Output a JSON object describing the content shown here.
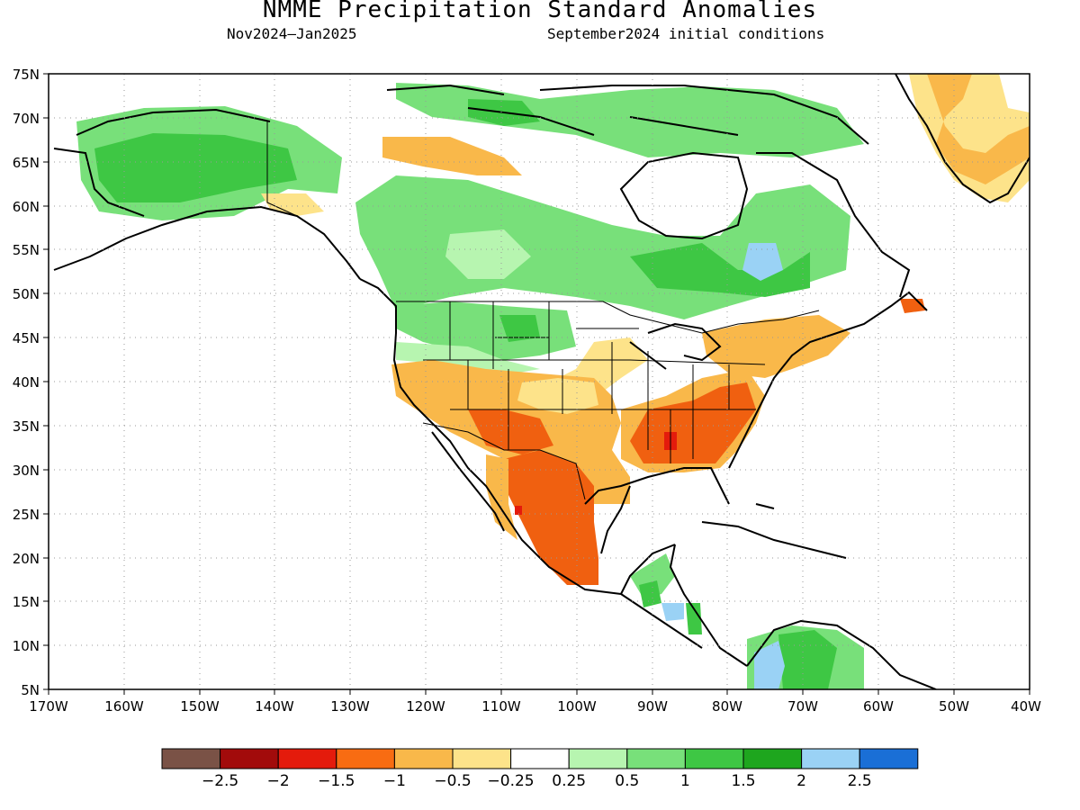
{
  "header": {
    "title": "NMME Precipitation Standard Anomalies",
    "period": "Nov2024–Jan2025",
    "init": "September2024 initial conditions"
  },
  "map": {
    "lat_ticks": [
      "75N",
      "70N",
      "65N",
      "60N",
      "55N",
      "50N",
      "45N",
      "40N",
      "35N",
      "30N",
      "25N",
      "20N",
      "15N",
      "10N",
      "5N"
    ],
    "lon_ticks": [
      "170W",
      "160W",
      "150W",
      "140W",
      "130W",
      "120W",
      "110W",
      "100W",
      "90W",
      "80W",
      "70W",
      "60W",
      "50W",
      "40W"
    ],
    "lat_range": [
      5,
      75
    ],
    "lon_range": [
      -170,
      -40
    ],
    "grid": "dotted",
    "colors": {
      "coast": "#000000",
      "dry_strong": "#f06010",
      "dry": "#f9b84a",
      "dry_weak": "#fde38a",
      "wet_weak": "#b7f5b0",
      "wet": "#78e07a",
      "wet_mid": "#3ec744",
      "wet_strong": "#22a82a",
      "very_wet": "#9ad2f5",
      "extreme_dry": "#e41b0c"
    }
  },
  "colorbar": {
    "colors": [
      "#7a5246",
      "#a20b0b",
      "#e41b0c",
      "#f86c12",
      "#f9b84a",
      "#fde38a",
      "#ffffff",
      "#b7f5b0",
      "#78e07a",
      "#3ec744",
      "#1ea61e",
      "#9ad2f5",
      "#1a6fd6"
    ],
    "labels": [
      "−2.5",
      "−2",
      "−1.5",
      "−1",
      "−0.5",
      "−0.25",
      "0.25",
      "0.5",
      "1",
      "1.5",
      "2",
      "2.5"
    ]
  }
}
